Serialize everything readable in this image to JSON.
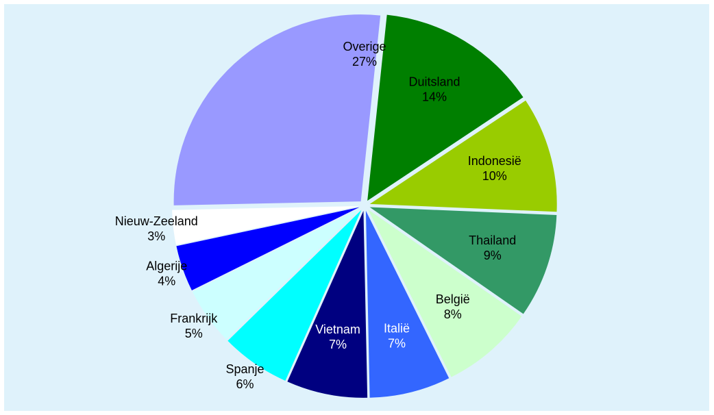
{
  "chart_data": {
    "type": "pie",
    "title": "",
    "start_angle_deg": 6,
    "slices": [
      {
        "label": "Duitsland",
        "value_label": "14%",
        "value": 14,
        "color": "#007f00",
        "text_color": "#000000"
      },
      {
        "label": "Indonesië",
        "value_label": "10%",
        "value": 10,
        "color": "#99cc00",
        "text_color": "#000000"
      },
      {
        "label": "Thailand",
        "value_label": "9%",
        "value": 9,
        "color": "#339966",
        "text_color": "#000000"
      },
      {
        "label": "België",
        "value_label": "8%",
        "value": 8,
        "color": "#ccffcc",
        "text_color": "#000000"
      },
      {
        "label": "Italië",
        "value_label": "7%",
        "value": 7,
        "color": "#3366ff",
        "text_color": "#ffffff"
      },
      {
        "label": "Vietnam",
        "value_label": "7%",
        "value": 7,
        "color": "#000080",
        "text_color": "#ffffff"
      },
      {
        "label": "Spanje",
        "value_label": "6%",
        "value": 6,
        "color": "#00ffff",
        "text_color": "#000000"
      },
      {
        "label": "Frankrijk",
        "value_label": "5%",
        "value": 5,
        "color": "#ccffff",
        "text_color": "#000000"
      },
      {
        "label": "Algerije",
        "value_label": "4%",
        "value": 4,
        "color": "#0000ff",
        "text_color": "#000000"
      },
      {
        "label": "Nieuw-Zeeland",
        "value_label": "3%",
        "value": 3,
        "color": "#ffffff",
        "text_color": "#000000"
      },
      {
        "label": "Overige",
        "value_label": "27%",
        "value": 27,
        "color": "#9999ff",
        "text_color": "#000000"
      }
    ]
  }
}
